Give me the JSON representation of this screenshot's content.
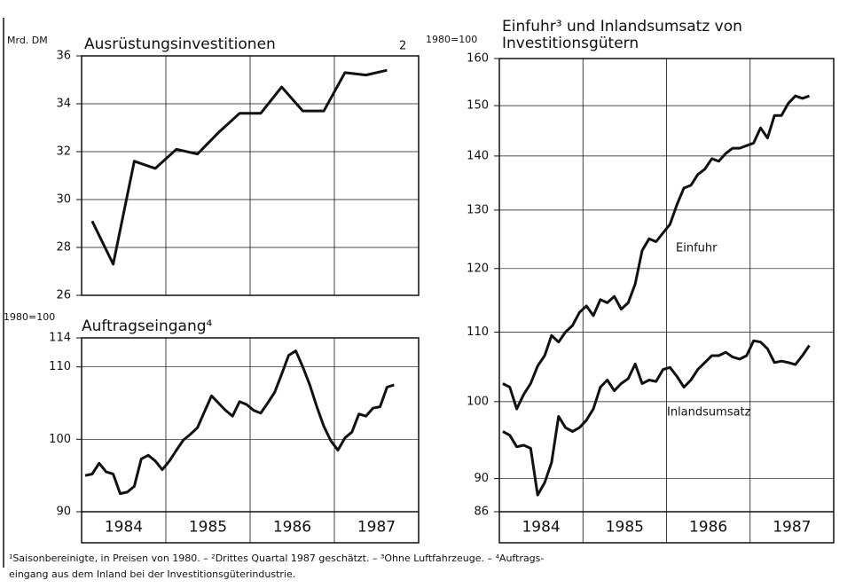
{
  "chart_data": [
    {
      "type": "line",
      "title": "Ausrüstungsinvestitionen",
      "y_label": "Mrd. DM",
      "end_label": "2",
      "categories": [
        null,
        null,
        null,
        null,
        null,
        null,
        null,
        null,
        null,
        null,
        null,
        null,
        null,
        null,
        null,
        null
      ],
      "values": [
        29.1,
        27.3,
        31.6,
        31.3,
        32.1,
        31.9,
        32.8,
        33.6,
        33.6,
        34.7,
        33.7,
        33.7,
        35.3,
        35.2,
        35.4,
        null
      ],
      "color": "#111111",
      "ylim": [
        26,
        36
      ],
      "yticks": [
        26,
        28,
        30,
        32,
        34,
        36
      ],
      "grid": true
    },
    {
      "type": "line",
      "title": "Auftragseingang⁴",
      "y_label": "1980=100",
      "categories": [
        null,
        null,
        null,
        null,
        null,
        null,
        null,
        null,
        null,
        null,
        null,
        null,
        null,
        null,
        null,
        null,
        null,
        null,
        null,
        null,
        null,
        null,
        null,
        null,
        null,
        null,
        null,
        null,
        null,
        null,
        null,
        null,
        null,
        null,
        null,
        null,
        null,
        null,
        null,
        null,
        null,
        null,
        null,
        null,
        null,
        null,
        null,
        null
      ],
      "x_groups": [
        "1984",
        "1985",
        "1986",
        "1987"
      ],
      "values": [
        95.0,
        95.2,
        96.7,
        95.5,
        95.2,
        92.5,
        92.7,
        93.5,
        97.3,
        97.8,
        97.0,
        95.8,
        97.0,
        98.5,
        99.9,
        100.7,
        101.6,
        103.8,
        106.0,
        105.0,
        104.0,
        103.2,
        105.2,
        104.8,
        104.0,
        103.6,
        105.0,
        106.5,
        109.0,
        111.6,
        112.2,
        110.0,
        107.5,
        104.5,
        101.8,
        99.8,
        98.5,
        100.2,
        101.0,
        103.5,
        103.2,
        104.3,
        104.5,
        107.2,
        107.5,
        null,
        null,
        null
      ],
      "color": "#111111",
      "ylim": [
        90,
        114
      ],
      "yticks": [
        90,
        100,
        110,
        114
      ],
      "grid": true
    },
    {
      "type": "line",
      "title": [
        "Einfuhr³ und Inlandsumsatz von",
        "Investitionsgütern"
      ],
      "y_label": "1980=100",
      "categories": [
        null,
        null,
        null,
        null,
        null,
        null,
        null,
        null,
        null,
        null,
        null,
        null,
        null,
        null,
        null,
        null,
        null,
        null,
        null,
        null,
        null,
        null,
        null,
        null,
        null,
        null,
        null,
        null,
        null,
        null,
        null,
        null,
        null,
        null,
        null,
        null,
        null,
        null,
        null,
        null,
        null,
        null,
        null,
        null,
        null,
        null,
        null,
        null
      ],
      "x_groups": [
        "1984",
        "1985",
        "1986",
        "1987"
      ],
      "series": [
        {
          "name": "Einfuhr",
          "color": "#111111",
          "values": [
            102.5,
            102,
            99,
            101,
            102.5,
            105,
            106.5,
            109.5,
            108.5,
            110,
            111,
            113,
            114,
            112.5,
            115,
            114.5,
            115.5,
            113.5,
            114.5,
            117.5,
            123,
            125,
            124.5,
            126,
            127.5,
            131,
            134,
            134.5,
            136.5,
            137.5,
            139.5,
            139,
            140.5,
            141.5,
            141.5,
            142,
            142.5,
            145.5,
            143.5,
            148,
            148,
            150.5,
            152,
            151.5,
            152,
            null,
            null,
            null
          ]
        },
        {
          "name": "Inlandsumsatz",
          "color": "#111111",
          "values": [
            96,
            95.5,
            94,
            94.2,
            93.8,
            88,
            89.5,
            92,
            98,
            96.5,
            96,
            96.5,
            97.5,
            99,
            102,
            103,
            101.5,
            102.5,
            103.2,
            105.3,
            102.5,
            103,
            102.8,
            104.5,
            104.8,
            103.5,
            102,
            103,
            104.5,
            105.5,
            106.5,
            106.5,
            107,
            106.3,
            106,
            106.5,
            108.7,
            108.5,
            107.5,
            105.5,
            105.7,
            105.5,
            105.2,
            106.5,
            108,
            null,
            null,
            null
          ]
        }
      ],
      "ylim": [
        86,
        160
      ],
      "yticks": [
        86,
        90,
        100,
        110,
        120,
        130,
        140,
        150,
        160
      ],
      "log_scale": true,
      "grid": true
    }
  ],
  "footnote": [
    "¹Saisonbereinigte, in Preisen von 1980. – ²Drittes Quartal 1987 geschätzt. – ³Ohne Luftfahrzeuge. – ⁴Auftrags-",
    "eingang aus dem Inland bei der Investitionsgüterindustrie."
  ]
}
